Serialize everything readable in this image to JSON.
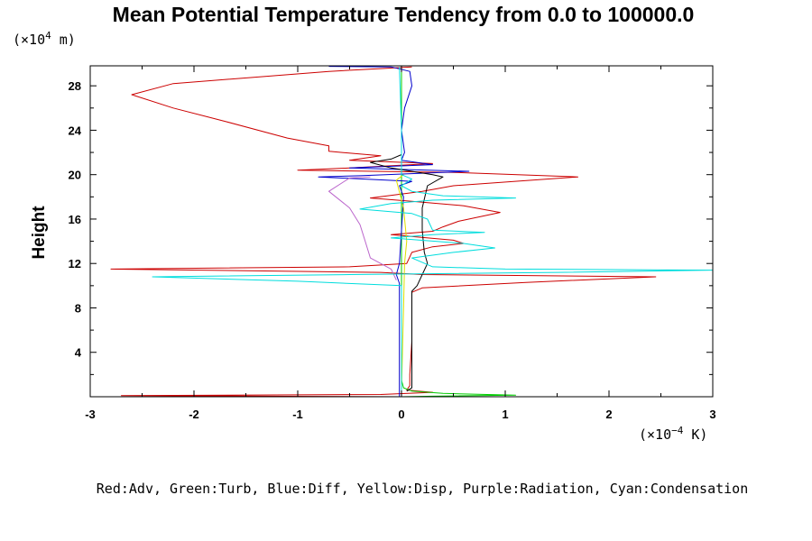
{
  "chart_data": {
    "type": "line",
    "title": "Mean Potential Temperature Tendency from 0.0 to 100000.0",
    "ylabel": "Height",
    "y_scale_label": {
      "prefix": "(×10",
      "exp": "4",
      "suffix": " m)"
    },
    "x_scale_label": {
      "prefix": "(×10",
      "exp": "−4",
      "suffix": " K)"
    },
    "legend_text": "Red:Adv, Green:Turb, Blue:Diff, Yellow:Disp, Purple:Radiation, Cyan:Condensation",
    "xlim": [
      -3,
      3
    ],
    "ylim": [
      0,
      29.8
    ],
    "x_ticks": [
      "-3",
      "-2",
      "-1",
      "0",
      "1",
      "2",
      "3"
    ],
    "y_ticks": [
      "4",
      "8",
      "12",
      "16",
      "20",
      "24",
      "28"
    ],
    "grid": false,
    "legend_position": "bottom",
    "series": [
      {
        "color": "#cc0000",
        "points": [
          [
            0.0,
            0.0
          ],
          [
            -2.7,
            0.1
          ],
          [
            -0.2,
            0.2
          ],
          [
            0.3,
            0.4
          ],
          [
            0.05,
            0.6
          ],
          [
            0.08,
            1.0
          ],
          [
            0.08,
            2.0
          ],
          [
            0.1,
            5.0
          ],
          [
            0.1,
            8.0
          ],
          [
            0.1,
            9.4
          ],
          [
            0.2,
            9.8
          ],
          [
            1.2,
            10.3
          ],
          [
            2.45,
            10.8
          ],
          [
            0.2,
            11.0
          ],
          [
            -0.2,
            11.2
          ],
          [
            -2.8,
            11.5
          ],
          [
            -0.5,
            11.7
          ],
          [
            0.05,
            12.0
          ],
          [
            0.1,
            13.0
          ],
          [
            0.3,
            13.5
          ],
          [
            0.6,
            13.8
          ],
          [
            0.5,
            14.1
          ],
          [
            -0.1,
            14.6
          ],
          [
            0.3,
            14.9
          ],
          [
            0.4,
            15.3
          ],
          [
            0.55,
            15.8
          ],
          [
            0.95,
            16.6
          ],
          [
            0.6,
            17.2
          ],
          [
            0.1,
            17.6
          ],
          [
            -0.3,
            17.9
          ],
          [
            0.2,
            18.5
          ],
          [
            0.5,
            19.0
          ],
          [
            1.7,
            19.8
          ],
          [
            0.5,
            20.2
          ],
          [
            -1.0,
            20.4
          ],
          [
            -0.5,
            20.6
          ],
          [
            0.3,
            21.0
          ],
          [
            -0.5,
            21.3
          ],
          [
            -0.2,
            21.7
          ],
          [
            -0.7,
            22.1
          ],
          [
            -0.7,
            22.6
          ],
          [
            -1.1,
            23.3
          ],
          [
            -1.7,
            24.8
          ],
          [
            -2.2,
            26.0
          ],
          [
            -2.6,
            27.2
          ],
          [
            -2.2,
            28.2
          ],
          [
            -0.7,
            29.3
          ],
          [
            0.1,
            29.7
          ]
        ]
      },
      {
        "color": "#00cc00",
        "points": [
          [
            0.0,
            0.0
          ],
          [
            0.3,
            0.05
          ],
          [
            1.1,
            0.15
          ],
          [
            0.4,
            0.3
          ],
          [
            0.1,
            0.5
          ],
          [
            0.02,
            0.8
          ],
          [
            0.0,
            1.5
          ],
          [
            0.0,
            29.7
          ]
        ]
      },
      {
        "color": "#0000cc",
        "points": [
          [
            -0.02,
            0.0
          ],
          [
            -0.02,
            10.2
          ],
          [
            -0.05,
            11.0
          ],
          [
            -0.02,
            12.0
          ],
          [
            0.02,
            18.0
          ],
          [
            -0.02,
            19.0
          ],
          [
            0.1,
            19.4
          ],
          [
            -0.8,
            19.8
          ],
          [
            -0.4,
            19.9
          ],
          [
            0.65,
            20.3
          ],
          [
            -0.5,
            20.6
          ],
          [
            0.3,
            20.9
          ],
          [
            0.0,
            21.3
          ],
          [
            0.03,
            22.0
          ],
          [
            0.0,
            24.0
          ],
          [
            0.03,
            26.0
          ],
          [
            0.1,
            28.0
          ],
          [
            0.08,
            29.3
          ],
          [
            -0.1,
            29.7
          ],
          [
            -0.7,
            29.75
          ]
        ]
      },
      {
        "color": "#000000",
        "points": [
          [
            0.05,
            0.5
          ],
          [
            0.1,
            0.8
          ],
          [
            0.1,
            2.0
          ],
          [
            0.1,
            8.0
          ],
          [
            0.1,
            9.5
          ],
          [
            0.15,
            10.0
          ],
          [
            0.2,
            11.0
          ],
          [
            0.25,
            12.0
          ],
          [
            0.22,
            13.0
          ],
          [
            0.2,
            15.0
          ],
          [
            0.2,
            17.0
          ],
          [
            0.25,
            19.0
          ],
          [
            0.4,
            19.8
          ],
          [
            0.3,
            20.0
          ],
          [
            -0.1,
            20.6
          ],
          [
            -0.3,
            21.1
          ],
          [
            -0.1,
            21.4
          ],
          [
            0.0,
            21.8
          ]
        ]
      },
      {
        "color": "#dddd00",
        "points": [
          [
            0.0,
            0.5
          ],
          [
            0.02,
            8.0
          ],
          [
            0.03,
            12.0
          ],
          [
            0.05,
            14.0
          ],
          [
            0.02,
            17.0
          ],
          [
            -0.05,
            19.5
          ],
          [
            0.02,
            20.0
          ]
        ]
      },
      {
        "color": "#bb66cc",
        "points": [
          [
            -0.05,
            10.5
          ],
          [
            -0.1,
            11.5
          ],
          [
            -0.3,
            12.5
          ],
          [
            -0.35,
            14.0
          ],
          [
            -0.4,
            15.5
          ],
          [
            -0.5,
            17.0
          ],
          [
            -0.7,
            18.5
          ],
          [
            -0.5,
            19.7
          ],
          [
            -0.3,
            19.8
          ]
        ]
      },
      {
        "color": "#00dddd",
        "points": [
          [
            0.0,
            0.0
          ],
          [
            0.0,
            10.0
          ],
          [
            -1.0,
            10.4
          ],
          [
            -2.4,
            10.8
          ],
          [
            -0.5,
            11.0
          ],
          [
            1.5,
            11.2
          ],
          [
            3.0,
            11.4
          ],
          [
            1.0,
            11.5
          ],
          [
            0.3,
            11.7
          ],
          [
            0.1,
            12.5
          ],
          [
            0.5,
            13.0
          ],
          [
            0.9,
            13.4
          ],
          [
            0.6,
            13.8
          ],
          [
            -0.1,
            14.3
          ],
          [
            0.3,
            14.6
          ],
          [
            0.8,
            14.8
          ],
          [
            0.3,
            15.0
          ],
          [
            0.25,
            16.0
          ],
          [
            0.1,
            16.5
          ],
          [
            -0.4,
            16.9
          ],
          [
            -0.1,
            17.4
          ],
          [
            0.3,
            17.7
          ],
          [
            1.1,
            17.9
          ],
          [
            0.4,
            18.1
          ],
          [
            0.1,
            18.5
          ],
          [
            0.0,
            19.0
          ],
          [
            0.1,
            19.6
          ],
          [
            0.0,
            20.0
          ],
          [
            0.0,
            24.0
          ],
          [
            -0.02,
            29.7
          ]
        ]
      }
    ]
  }
}
